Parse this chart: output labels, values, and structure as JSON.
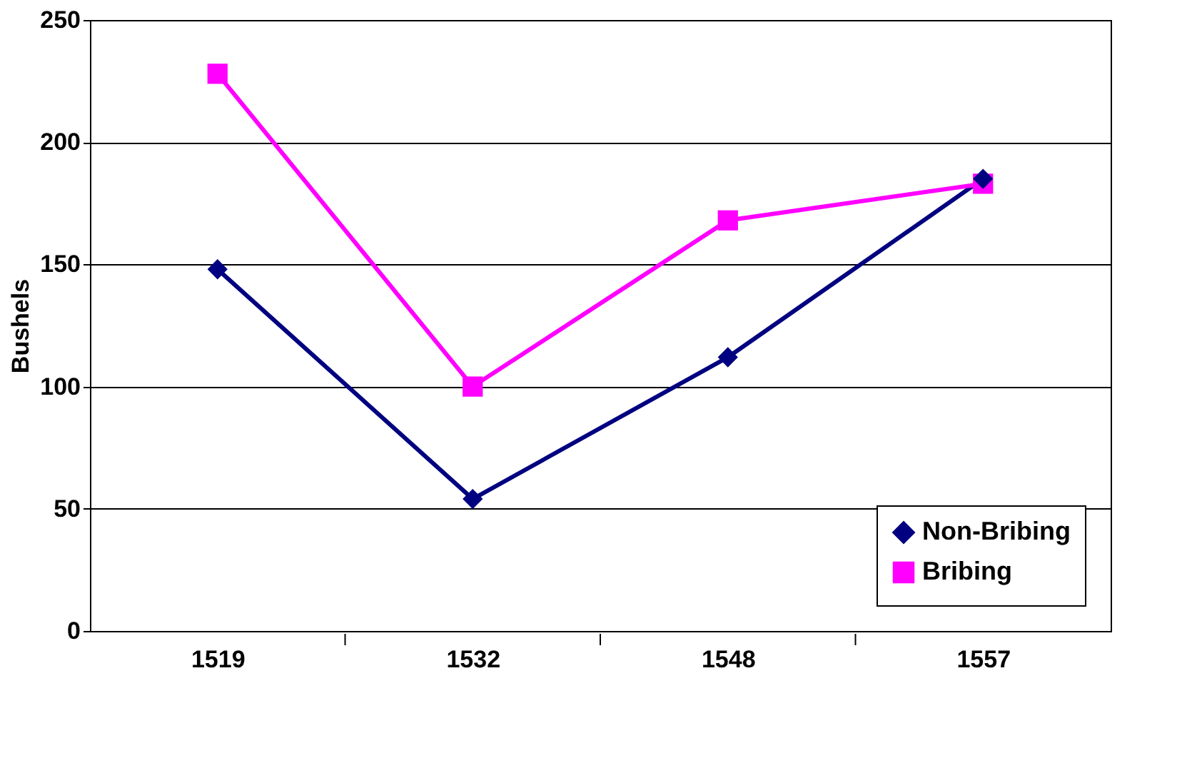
{
  "chart_data": {
    "type": "line",
    "ylabel": "Bushels",
    "categories": [
      "1519",
      "1532",
      "1548",
      "1557"
    ],
    "series": [
      {
        "name": "Non-Bribing",
        "color": "#000080",
        "marker": "diamond",
        "values": [
          148,
          54,
          112,
          185
        ]
      },
      {
        "name": "Bribing",
        "color": "#ff00ff",
        "marker": "square",
        "values": [
          228,
          100,
          168,
          183
        ]
      }
    ],
    "ylim": [
      0,
      250
    ],
    "yticks": [
      0,
      50,
      100,
      150,
      200,
      250
    ],
    "grid": "y",
    "legend": "bottom right",
    "line_style": "solid"
  }
}
